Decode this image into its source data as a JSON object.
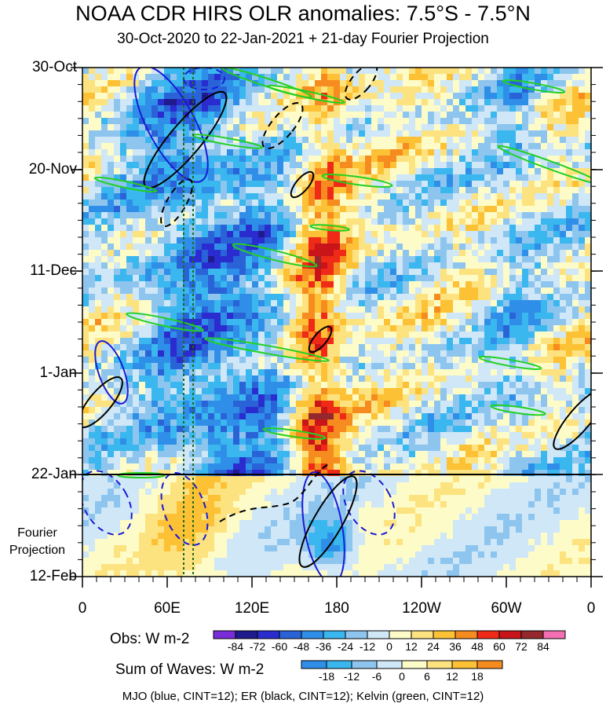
{
  "chart_data": {
    "type": "heatmap",
    "title": "NOAA CDR HIRS OLR anomalies: 7.5°S - 7.5°N",
    "subtitle": "30-Oct-2020 to 22-Jan-2021 + 21-day Fourier Projection",
    "x_ticks": [
      "0",
      "60E",
      "120E",
      "180",
      "120W",
      "60W",
      "0"
    ],
    "y_ticks": [
      "30-Oct",
      "20-Nov",
      "11-Dec",
      "1-Jan",
      "22-Jan",
      "12-Feb"
    ],
    "projection_label_line1": "Fourier",
    "projection_label_line2": "Projection",
    "obs_colorbar": {
      "label": "Obs: W m-2",
      "levels": [
        "-84",
        "-72",
        "-60",
        "-48",
        "-36",
        "-24",
        "-12",
        "0",
        "12",
        "24",
        "36",
        "48",
        "60",
        "72",
        "84"
      ],
      "colors": [
        "#7b2cd9",
        "#1f1b8f",
        "#2a2ccf",
        "#2a63d8",
        "#2f8fe8",
        "#39b7ee",
        "#8ec5ef",
        "#cfe7f6",
        "#fdfcc8",
        "#fde280",
        "#fcc134",
        "#f68c1f",
        "#ef2a17",
        "#c9141a",
        "#94282d",
        "#f36fb4"
      ]
    },
    "waves_colorbar": {
      "label": "Sum of Waves: W m-2",
      "levels": [
        "-18",
        "-12",
        "-6",
        "0",
        "6",
        "12",
        "18"
      ],
      "colors": [
        "#2f8fe8",
        "#39b7ee",
        "#8ec5ef",
        "#cfe7f6",
        "#fdfcc8",
        "#fde280",
        "#fcc134",
        "#f68c1f"
      ]
    },
    "footnote": "MJO (blue, CINT=12); ER (black, CINT=12); Kelvin (green, CINT=12)",
    "contour_colors": {
      "mjo": "#1a1ad6",
      "er": "#000000",
      "kelvin": "#22d022"
    }
  }
}
